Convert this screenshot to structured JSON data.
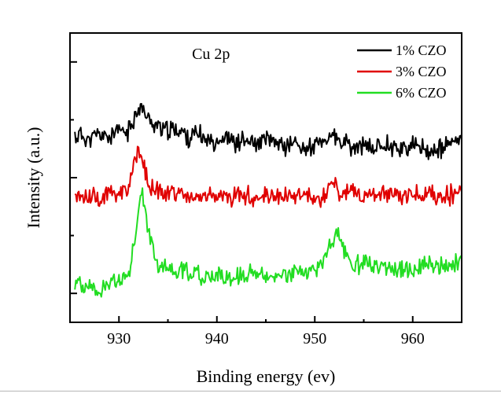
{
  "chart_data": {
    "type": "line",
    "annotation": "Cu 2p",
    "xlabel": "Binding energy (ev)",
    "ylabel": "Intensity (a.u.)",
    "xlim": [
      925,
      965
    ],
    "ylim": [
      0,
      10
    ],
    "xticks": [
      930,
      940,
      950,
      960
    ],
    "grid": false,
    "legend": "top-right",
    "series": [
      {
        "name": "1% CZO",
        "color": "#000000",
        "x": [
          925.5,
          926,
          927,
          928,
          929,
          930,
          931,
          931.5,
          932,
          932.5,
          933,
          933.5,
          934,
          935,
          936,
          937,
          938,
          939,
          940,
          941,
          942,
          943,
          944,
          945,
          946,
          947,
          948,
          949,
          950,
          951,
          951.5,
          952,
          952.5,
          953,
          954,
          955,
          956,
          957,
          958,
          959,
          960,
          961,
          962,
          963,
          964,
          965
        ],
        "y": [
          6.4,
          6.5,
          6.3,
          6.5,
          6.4,
          6.6,
          6.6,
          7.0,
          7.5,
          7.3,
          7.0,
          6.9,
          6.8,
          6.6,
          6.7,
          6.4,
          6.5,
          6.3,
          6.3,
          6.4,
          6.2,
          6.3,
          6.1,
          6.3,
          6.2,
          6.1,
          6.2,
          6.0,
          6.1,
          6.2,
          6.5,
          6.4,
          6.2,
          6.2,
          6.0,
          6.1,
          6.0,
          6.2,
          6.1,
          6.0,
          6.1,
          6.0,
          5.9,
          6.0,
          6.2,
          6.3
        ]
      },
      {
        "name": "3% CZO",
        "color": "#e00000",
        "x": [
          925.5,
          926,
          927,
          928,
          929,
          930,
          931,
          931.5,
          932,
          932.5,
          933,
          933.5,
          934,
          935,
          936,
          937,
          938,
          939,
          940,
          941,
          942,
          943,
          944,
          945,
          946,
          947,
          948,
          949,
          950,
          951,
          951.5,
          952,
          952.5,
          953,
          954,
          955,
          956,
          957,
          958,
          959,
          960,
          961,
          962,
          963,
          964,
          965
        ],
        "y": [
          4.3,
          4.4,
          4.4,
          4.3,
          4.5,
          4.4,
          4.6,
          5.3,
          5.9,
          5.4,
          4.7,
          4.6,
          4.6,
          4.5,
          4.4,
          4.4,
          4.3,
          4.4,
          4.4,
          4.3,
          4.4,
          4.4,
          4.3,
          4.4,
          4.3,
          4.4,
          4.3,
          4.4,
          4.2,
          4.3,
          4.6,
          4.7,
          4.5,
          4.5,
          4.5,
          4.4,
          4.4,
          4.4,
          4.4,
          4.4,
          4.4,
          4.4,
          4.4,
          4.4,
          4.4,
          4.6
        ]
      },
      {
        "name": "6% CZO",
        "color": "#22dd22",
        "x": [
          925.5,
          926,
          927,
          928,
          929,
          930,
          931,
          931.5,
          932,
          932.3,
          932.6,
          933,
          933.5,
          934,
          935,
          936,
          937,
          938,
          939,
          940,
          941,
          942,
          943,
          944,
          945,
          946,
          947,
          948,
          949,
          950,
          951,
          951.5,
          952,
          952.4,
          953,
          953.5,
          954,
          955,
          956,
          957,
          958,
          959,
          960,
          961,
          962,
          963,
          964,
          965
        ],
        "y": [
          1.3,
          1.3,
          1.2,
          1.1,
          1.3,
          1.4,
          1.8,
          2.6,
          3.8,
          4.6,
          4.2,
          3.2,
          2.4,
          2.0,
          1.9,
          1.8,
          1.7,
          1.7,
          1.6,
          1.6,
          1.6,
          1.6,
          1.6,
          1.7,
          1.6,
          1.7,
          1.7,
          1.7,
          1.8,
          1.8,
          2.2,
          2.6,
          3.0,
          2.9,
          2.5,
          2.1,
          2.0,
          2.0,
          1.9,
          1.9,
          1.9,
          1.8,
          1.9,
          2.0,
          1.9,
          1.9,
          2.0,
          2.1
        ]
      }
    ]
  }
}
